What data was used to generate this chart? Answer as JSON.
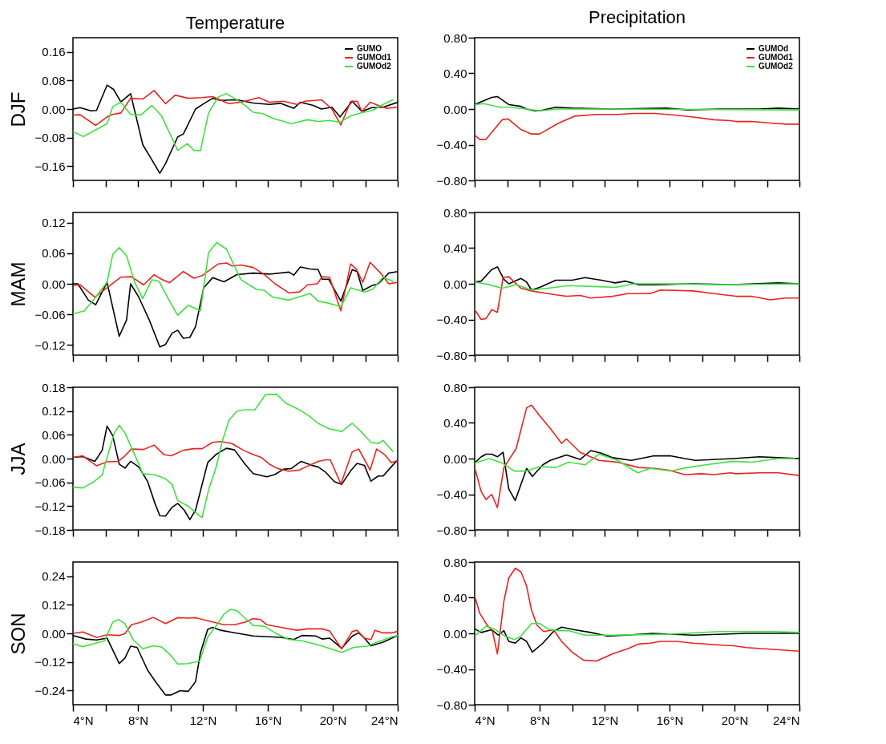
{
  "chart_data": [
    {
      "type": "line",
      "title": "Temperature",
      "ylabel": "DJF",
      "xlim": [
        4,
        24
      ],
      "xticks": [
        {
          "value": 4,
          "label": null
        },
        {
          "value": 6,
          "label": null
        },
        {
          "value": 8,
          "label": null
        },
        {
          "value": 10,
          "label": null
        },
        {
          "value": 12,
          "label": null
        },
        {
          "value": 14,
          "label": null
        },
        {
          "value": 16,
          "label": null
        },
        {
          "value": 18,
          "label": null
        },
        {
          "value": 20,
          "label": null
        },
        {
          "value": 22,
          "label": null
        },
        {
          "value": 24,
          "label": null
        }
      ],
      "ylim": [
        -0.2,
        0.2
      ],
      "yticks": [
        {
          "value": 0.16,
          "label": "0.16"
        },
        {
          "value": 0.08,
          "label": "0.08"
        },
        {
          "value": 0,
          "label": "0.00"
        },
        {
          "value": -0.08,
          "label": "−0.08"
        },
        {
          "value": -0.16,
          "label": "−0.16"
        }
      ],
      "tick_labels": "y",
      "legend": "top right",
      "series": [
        {
          "name": "GUMO",
          "color": "#000000",
          "x": [
            4,
            4.45,
            5.1,
            5.45,
            6.1,
            6.5,
            6.95,
            7.55,
            8.3,
            8.8,
            9.35,
            9.7,
            10.45,
            10.8,
            11.55,
            12.05,
            12.6,
            13.1,
            14.1,
            15.1,
            16.1,
            16.8,
            17.6,
            18,
            18.8,
            19.3,
            19.95,
            20.45,
            21.2,
            21.8,
            22.4,
            23.1,
            24
          ],
          "values": [
            0,
            0.004,
            -0.005,
            -0.004,
            0.067,
            0.055,
            0.02,
            0.043,
            -0.1,
            -0.138,
            -0.18,
            -0.153,
            -0.078,
            -0.07,
            0,
            0.015,
            0.03,
            0.024,
            0.026,
            0.017,
            0.013,
            0.016,
            0.002,
            0.019,
            0.01,
            0,
            0.005,
            -0.022,
            0.022,
            -0.007,
            0.004,
            0.005,
            0.019
          ]
        },
        {
          "name": "GUMOd1",
          "color": "#e8231f",
          "x": [
            4,
            4.45,
            5.4,
            6.1,
            6.45,
            6.95,
            7.55,
            8.3,
            9,
            9.7,
            10.3,
            11.1,
            11.95,
            12.6,
            13.6,
            14.45,
            15.45,
            16.1,
            16.95,
            17.8,
            18.3,
            19.3,
            19.95,
            20.5,
            21.1,
            21.5,
            21.8,
            22.3,
            22.8,
            23.3,
            24
          ],
          "values": [
            -0.017,
            -0.016,
            -0.046,
            -0.022,
            -0.015,
            -0.011,
            0.03,
            0.028,
            0.052,
            0.015,
            0.039,
            0.03,
            0.032,
            0.035,
            0.015,
            0.02,
            0.032,
            0.019,
            0.022,
            0.013,
            0.022,
            0.026,
            0,
            -0.045,
            0.021,
            0.022,
            -0.007,
            0.019,
            0.01,
            0.002,
            0.005
          ]
        },
        {
          "name": "GUMOd2",
          "color": "#40e040",
          "x": [
            4,
            4.65,
            6.1,
            6.45,
            6.95,
            7.55,
            8.2,
            8.85,
            9.45,
            10.45,
            11.05,
            11.45,
            11.85,
            12.35,
            12.95,
            13.45,
            13.95,
            14.6,
            15.1,
            15.7,
            16.3,
            17.45,
            18.45,
            19.1,
            19.8,
            20.45,
            21.1,
            21.8,
            22.45,
            23.1,
            23.7
          ],
          "values": [
            -0.064,
            -0.077,
            -0.041,
            0.007,
            0.019,
            -0.015,
            -0.016,
            0.01,
            -0.019,
            -0.116,
            -0.097,
            -0.116,
            -0.117,
            -0.011,
            0.034,
            0.043,
            0.03,
            0.01,
            -0.009,
            -0.013,
            -0.026,
            -0.041,
            -0.03,
            -0.035,
            -0.032,
            -0.037,
            -0.019,
            -0.01,
            -0.004,
            0.013,
            0.026
          ]
        }
      ]
    },
    {
      "type": "line",
      "title": "Precipitation",
      "xlim": [
        4,
        24
      ],
      "xticks": [
        {
          "value": 4,
          "label": null
        },
        {
          "value": 6,
          "label": null
        },
        {
          "value": 8,
          "label": null
        },
        {
          "value": 10,
          "label": null
        },
        {
          "value": 12,
          "label": null
        },
        {
          "value": 14,
          "label": null
        },
        {
          "value": 16,
          "label": null
        },
        {
          "value": 18,
          "label": null
        },
        {
          "value": 20,
          "label": null
        },
        {
          "value": 22,
          "label": null
        },
        {
          "value": 24,
          "label": null
        }
      ],
      "ylim": [
        -0.8,
        0.8
      ],
      "yticks": [
        {
          "value": 0.8,
          "label": "0.80"
        },
        {
          "value": 0.4,
          "label": "0.40"
        },
        {
          "value": 0,
          "label": "0.00"
        },
        {
          "value": -0.4,
          "label": "−0.40"
        },
        {
          "value": -0.8,
          "label": "−0.80"
        }
      ],
      "tick_labels": "y",
      "legend": "top right",
      "series": [
        {
          "name": "GUMOd",
          "color": "#000000",
          "x": [
            4,
            5.05,
            5.4,
            6.1,
            6.85,
            7.2,
            7.7,
            8,
            9,
            10,
            12.5,
            15.8,
            17.15,
            19.1,
            21.55,
            22.7,
            24
          ],
          "values": [
            0.05,
            0.13,
            0.14,
            0.05,
            0.03,
            0,
            -0.02,
            -0.02,
            0.02,
            0.01,
            0,
            0.01,
            -0.01,
            0,
            0,
            0.01,
            0
          ]
        },
        {
          "name": "GUMOd1",
          "color": "#e8231f",
          "x": [
            4,
            4.3,
            4.7,
            5.7,
            6.05,
            6.85,
            7.5,
            8,
            9.15,
            10.15,
            11.5,
            12.8,
            13.8,
            15.1,
            16.45,
            17.45,
            18.75,
            19.75,
            20.1,
            21.05,
            22.4,
            23.2,
            24
          ],
          "values": [
            -0.29,
            -0.34,
            -0.34,
            -0.12,
            -0.11,
            -0.23,
            -0.28,
            -0.28,
            -0.16,
            -0.08,
            -0.06,
            -0.06,
            -0.05,
            -0.05,
            -0.07,
            -0.09,
            -0.12,
            -0.13,
            -0.14,
            -0.14,
            -0.16,
            -0.17,
            -0.17
          ]
        },
        {
          "name": "GUMOd2",
          "color": "#40e040",
          "x": [
            4,
            4.55,
            5.55,
            6.2,
            7.2,
            8,
            9.15,
            12.5,
            24
          ],
          "values": [
            0.05,
            0.06,
            0.02,
            0.02,
            0,
            -0.02,
            0,
            0,
            -0.01
          ]
        }
      ]
    },
    {
      "type": "line",
      "ylabel": "MAM",
      "xlim": [
        4,
        24
      ],
      "xticks": [
        {
          "value": 4,
          "label": null
        },
        {
          "value": 6,
          "label": null
        },
        {
          "value": 8,
          "label": null
        },
        {
          "value": 10,
          "label": null
        },
        {
          "value": 12,
          "label": null
        },
        {
          "value": 14,
          "label": null
        },
        {
          "value": 16,
          "label": null
        },
        {
          "value": 18,
          "label": null
        },
        {
          "value": 20,
          "label": null
        },
        {
          "value": 22,
          "label": null
        },
        {
          "value": 24,
          "label": null
        }
      ],
      "ylim": [
        -0.14,
        0.14
      ],
      "yticks": [
        {
          "value": 0.12,
          "label": "0.12"
        },
        {
          "value": 0.06,
          "label": "0.06"
        },
        {
          "value": 0,
          "label": "0.00"
        },
        {
          "value": -0.06,
          "label": "−0.06"
        },
        {
          "value": -0.12,
          "label": "−0.12"
        }
      ],
      "tick_labels": "y",
      "series": [
        {
          "color": "#000000",
          "x": [
            4,
            4.3,
            4.95,
            5.4,
            6.1,
            6.85,
            7.3,
            7.55,
            8.05,
            8.7,
            9.35,
            9.7,
            10.1,
            10.45,
            10.8,
            11.2,
            11.55,
            12.05,
            12.6,
            13.3,
            14.1,
            15.1,
            16.1,
            17.3,
            17.6,
            18,
            18.6,
            19.1,
            19.35,
            19.75,
            20.5,
            21.2,
            21.5,
            21.85,
            22.45,
            22.8,
            23.45,
            24
          ],
          "values": [
            0,
            0,
            -0.032,
            -0.041,
            0.003,
            -0.103,
            -0.071,
            0,
            -0.026,
            -0.071,
            -0.124,
            -0.119,
            -0.097,
            -0.091,
            -0.107,
            -0.105,
            -0.084,
            -0.008,
            0.012,
            0.004,
            0.018,
            0.021,
            0.019,
            0.023,
            0.017,
            0.033,
            0.029,
            0.028,
            0.009,
            0.009,
            -0.034,
            0.028,
            0.024,
            -0.013,
            -0.003,
            0,
            0.021,
            0.024
          ]
        },
        {
          "color": "#e8231f",
          "x": [
            4,
            4.45,
            5.35,
            6.95,
            7.6,
            8.35,
            9,
            9.45,
            9.95,
            10.8,
            11.45,
            11.95,
            12.95,
            13.45,
            13.8,
            14.35,
            15.1,
            15.8,
            16.45,
            17.3,
            17.95,
            18.45,
            19.05,
            19.35,
            19.8,
            20.5,
            21.1,
            21.45,
            21.85,
            22.3,
            22.95,
            23.45,
            24
          ],
          "values": [
            -0.003,
            -0.002,
            -0.026,
            0.013,
            0.014,
            -0.002,
            0.018,
            0.009,
            0.002,
            0.024,
            0.011,
            0.016,
            0.039,
            0.041,
            0.035,
            0.037,
            0.032,
            0.018,
            0,
            -0.018,
            -0.016,
            -0.002,
            0,
            0.014,
            0.013,
            -0.053,
            0.039,
            0.029,
            0.003,
            0.042,
            0.021,
            0,
            0.003
          ]
        },
        {
          "color": "#40e040",
          "x": [
            4,
            4.7,
            5.45,
            6.1,
            6.45,
            6.85,
            7.3,
            7.8,
            8.3,
            8.85,
            9.3,
            9.95,
            10.45,
            11.1,
            11.85,
            12.35,
            12.85,
            13.45,
            14.35,
            15.3,
            15.8,
            16.3,
            17.3,
            18.6,
            19.1,
            19.75,
            20.5,
            21.1,
            21.95,
            22.45,
            23.1,
            23.7
          ],
          "values": [
            -0.059,
            -0.053,
            -0.024,
            0.003,
            0.058,
            0.071,
            0.055,
            0.003,
            -0.029,
            0.008,
            0.005,
            -0.034,
            -0.062,
            -0.042,
            -0.053,
            0.061,
            0.081,
            0.068,
            0.008,
            -0.011,
            -0.013,
            -0.026,
            -0.032,
            -0.019,
            -0.034,
            -0.038,
            -0.045,
            -0.008,
            -0.016,
            -0.011,
            0.013,
            0.005
          ]
        }
      ]
    },
    {
      "type": "line",
      "xlim": [
        4,
        24
      ],
      "xticks": [
        {
          "value": 4,
          "label": null
        },
        {
          "value": 6,
          "label": null
        },
        {
          "value": 8,
          "label": null
        },
        {
          "value": 10,
          "label": null
        },
        {
          "value": 12,
          "label": null
        },
        {
          "value": 14,
          "label": null
        },
        {
          "value": 16,
          "label": null
        },
        {
          "value": 18,
          "label": null
        },
        {
          "value": 20,
          "label": null
        },
        {
          "value": 22,
          "label": null
        },
        {
          "value": 24,
          "label": null
        }
      ],
      "ylim": [
        -0.8,
        0.8
      ],
      "yticks": [
        {
          "value": 0.8,
          "label": "0.80"
        },
        {
          "value": 0.4,
          "label": "0.40"
        },
        {
          "value": 0,
          "label": "0.00"
        },
        {
          "value": -0.4,
          "label": "−0.40"
        },
        {
          "value": -0.8,
          "label": "−0.80"
        }
      ],
      "tick_labels": "y",
      "series": [
        {
          "color": "#000000",
          "x": [
            4,
            4.4,
            5.05,
            5.4,
            5.8,
            6.1,
            6.85,
            7.2,
            7.5,
            8,
            9,
            10,
            10.8,
            11.8,
            12.65,
            13.3,
            14.1,
            15.1,
            17.45,
            19.9,
            22.7,
            24
          ],
          "values": [
            0.02,
            0.03,
            0.16,
            0.19,
            0.05,
            0,
            0.06,
            0.02,
            -0.07,
            -0.04,
            0.04,
            0.04,
            0.07,
            0.04,
            0.01,
            0.03,
            -0.01,
            -0.01,
            0,
            -0.01,
            0.01,
            0
          ]
        },
        {
          "color": "#e8231f",
          "x": [
            4,
            4.4,
            4.7,
            5.05,
            5.4,
            5.75,
            6.1,
            6.85,
            7.5,
            8.5,
            9.65,
            10.5,
            11.15,
            12.5,
            13.45,
            14.8,
            15.45,
            17.45,
            18.75,
            20.1,
            21.05,
            22.2,
            23.1,
            24
          ],
          "values": [
            -0.29,
            -0.4,
            -0.39,
            -0.29,
            -0.32,
            0.07,
            0.08,
            -0.05,
            -0.08,
            -0.11,
            -0.14,
            -0.13,
            -0.16,
            -0.14,
            -0.11,
            -0.11,
            -0.07,
            -0.08,
            -0.11,
            -0.14,
            -0.14,
            -0.18,
            -0.16,
            -0.16
          ]
        },
        {
          "color": "#40e040",
          "x": [
            4,
            4.9,
            5.7,
            6.55,
            7.5,
            8.5,
            9.8,
            11.3,
            12.65,
            13.8,
            15.8,
            19.1,
            24
          ],
          "values": [
            0.02,
            -0.01,
            -0.05,
            -0.01,
            -0.07,
            -0.05,
            -0.02,
            -0.03,
            -0.04,
            0,
            0,
            -0.01,
            0
          ]
        }
      ]
    },
    {
      "type": "line",
      "ylabel": "JJA",
      "xlim": [
        4,
        24
      ],
      "xticks": [
        {
          "value": 4,
          "label": null
        },
        {
          "value": 6,
          "label": null
        },
        {
          "value": 8,
          "label": null
        },
        {
          "value": 10,
          "label": null
        },
        {
          "value": 12,
          "label": null
        },
        {
          "value": 14,
          "label": null
        },
        {
          "value": 16,
          "label": null
        },
        {
          "value": 18,
          "label": null
        },
        {
          "value": 20,
          "label": null
        },
        {
          "value": 22,
          "label": null
        },
        {
          "value": 24,
          "label": null
        }
      ],
      "ylim": [
        -0.18,
        0.18
      ],
      "yticks": [
        {
          "value": 0.18,
          "label": "0.18"
        },
        {
          "value": 0.12,
          "label": "0.12"
        },
        {
          "value": 0.06,
          "label": "0.06"
        },
        {
          "value": 0,
          "label": "0.00"
        },
        {
          "value": -0.06,
          "label": "−0.06"
        },
        {
          "value": -0.12,
          "label": "−0.12"
        },
        {
          "value": -0.18,
          "label": "−0.18"
        }
      ],
      "tick_labels": "y",
      "series": [
        {
          "color": "#000000",
          "x": [
            4,
            4.6,
            5.35,
            5.8,
            6.1,
            6.45,
            6.85,
            7.2,
            7.55,
            8.05,
            8.6,
            9.05,
            9.35,
            9.7,
            10.1,
            10.45,
            10.85,
            11.2,
            11.55,
            12.3,
            12.8,
            13.45,
            13.95,
            14.6,
            15.1,
            15.95,
            16.45,
            16.95,
            17.45,
            18.05,
            18.8,
            19.1,
            19.55,
            20.1,
            20.55,
            21.1,
            21.5,
            21.95,
            22.35,
            22.8,
            23.1,
            23.6,
            24
          ],
          "values": [
            0.003,
            0.005,
            -0.007,
            0.021,
            0.082,
            0.058,
            -0.014,
            -0.024,
            -0.007,
            -0.021,
            -0.058,
            -0.113,
            -0.144,
            -0.145,
            -0.123,
            -0.113,
            -0.13,
            -0.154,
            -0.13,
            -0.01,
            0.01,
            0.026,
            0.022,
            -0.014,
            -0.038,
            -0.046,
            -0.04,
            -0.027,
            -0.025,
            -0.007,
            -0.018,
            -0.021,
            -0.034,
            -0.058,
            -0.065,
            -0.031,
            -0.012,
            -0.017,
            -0.057,
            -0.044,
            -0.044,
            -0.021,
            -0.003
          ]
        },
        {
          "color": "#e8231f",
          "x": [
            4,
            4.6,
            5.45,
            6.1,
            6.8,
            7.2,
            7.6,
            8.35,
            9,
            9.6,
            10.05,
            10.8,
            11.45,
            11.95,
            12.6,
            13.1,
            13.8,
            14.45,
            15.1,
            15.6,
            16.1,
            16.6,
            17.3,
            17.95,
            18.55,
            19.1,
            19.6,
            19.85,
            20.5,
            21.2,
            21.6,
            22.3,
            22.7,
            23.2,
            23.6,
            24
          ],
          "values": [
            0.003,
            0.007,
            -0.018,
            -0.008,
            -0.007,
            0.007,
            0.024,
            0.023,
            0.034,
            0.01,
            0.007,
            0.021,
            0.025,
            0.025,
            0.041,
            0.043,
            0.038,
            0.022,
            0.01,
            0.003,
            -0.014,
            -0.025,
            -0.032,
            -0.029,
            -0.017,
            -0.007,
            -0.003,
            -0.003,
            -0.064,
            0.017,
            0.024,
            -0.029,
            0.024,
            0.01,
            -0.01,
            -0.005
          ]
        },
        {
          "color": "#40e040",
          "x": [
            4,
            4.6,
            5.3,
            5.8,
            6.1,
            6.55,
            6.85,
            7.2,
            7.8,
            8.3,
            9.05,
            9.7,
            10.1,
            10.45,
            11.1,
            11.55,
            11.95,
            12.35,
            12.8,
            13.2,
            13.6,
            14.1,
            14.55,
            15.2,
            15.85,
            16.55,
            17.1,
            17.95,
            18.6,
            19.1,
            19.8,
            20.1,
            20.55,
            21.2,
            21.7,
            22.35,
            22.8,
            23.1,
            23.7
          ],
          "values": [
            -0.072,
            -0.074,
            -0.058,
            -0.041,
            0.003,
            0.065,
            0.084,
            0.065,
            0.01,
            -0.038,
            -0.041,
            -0.051,
            -0.065,
            -0.106,
            -0.12,
            -0.136,
            -0.149,
            -0.079,
            -0.024,
            0.044,
            0.096,
            0.12,
            0.123,
            0.123,
            0.161,
            0.162,
            0.14,
            0.123,
            0.106,
            0.089,
            0.075,
            0.073,
            0.068,
            0.089,
            0.07,
            0.041,
            0.038,
            0.046,
            0.018
          ]
        }
      ]
    },
    {
      "type": "line",
      "xlim": [
        4,
        24
      ],
      "xticks": [
        {
          "value": 4,
          "label": null
        },
        {
          "value": 6,
          "label": null
        },
        {
          "value": 8,
          "label": null
        },
        {
          "value": 10,
          "label": null
        },
        {
          "value": 12,
          "label": null
        },
        {
          "value": 14,
          "label": null
        },
        {
          "value": 16,
          "label": null
        },
        {
          "value": 18,
          "label": null
        },
        {
          "value": 20,
          "label": null
        },
        {
          "value": 22,
          "label": null
        },
        {
          "value": 24,
          "label": null
        }
      ],
      "ylim": [
        -0.8,
        0.8
      ],
      "yticks": [
        {
          "value": 0.8,
          "label": "0.80"
        },
        {
          "value": 0.4,
          "label": "0.40"
        },
        {
          "value": 0,
          "label": "0.00"
        },
        {
          "value": -0.4,
          "label": "−0.40"
        },
        {
          "value": -0.8,
          "label": "−0.80"
        }
      ],
      "tick_labels": "y",
      "series": [
        {
          "color": "#000000",
          "x": [
            4,
            4.4,
            4.7,
            5.05,
            5.4,
            5.75,
            6.1,
            6.5,
            7.2,
            7.55,
            8.2,
            8.65,
            9.65,
            10.5,
            11.15,
            11.8,
            12.5,
            13.65,
            15,
            16.1,
            16.95,
            17.6,
            19.9,
            21.55,
            22.7,
            24
          ],
          "values": [
            -0.05,
            0.02,
            0.05,
            0.05,
            0.02,
            0.07,
            -0.34,
            -0.47,
            -0.11,
            -0.2,
            -0.07,
            -0.02,
            0.04,
            -0.01,
            0.09,
            0.06,
            0.01,
            -0.02,
            0.03,
            0.03,
            0,
            -0.02,
            0,
            0.02,
            0.01,
            0
          ]
        },
        {
          "color": "#e8231f",
          "x": [
            4,
            4.4,
            4.7,
            5.05,
            5.4,
            5.8,
            6.55,
            7.2,
            7.5,
            8,
            8.65,
            9.15,
            9.35,
            9.65,
            10.5,
            11.65,
            12.8,
            14.1,
            15.1,
            15.95,
            16.95,
            17.95,
            18.75,
            19.75,
            20.1,
            21.55,
            22.7,
            24
          ],
          "values": [
            -0.1,
            -0.37,
            -0.46,
            -0.4,
            -0.55,
            -0.1,
            0.11,
            0.57,
            0.6,
            0.48,
            0.34,
            0.22,
            0.17,
            0.22,
            0.07,
            -0.02,
            -0.04,
            -0.1,
            -0.11,
            -0.13,
            -0.18,
            -0.17,
            -0.18,
            -0.16,
            -0.17,
            -0.16,
            -0.16,
            -0.19
          ]
        },
        {
          "color": "#40e040",
          "x": [
            4,
            4.9,
            5.7,
            6.45,
            7.2,
            8,
            9,
            9.8,
            10.8,
            11.65,
            12.8,
            14.05,
            14.8,
            16.1,
            17.1,
            18.25,
            19.9,
            21.05,
            22.7,
            23.7
          ],
          "values": [
            -0.05,
            0,
            -0.05,
            -0.14,
            -0.14,
            -0.09,
            -0.1,
            -0.04,
            -0.07,
            0.05,
            -0.02,
            -0.16,
            -0.11,
            -0.14,
            -0.1,
            -0.07,
            -0.03,
            -0.04,
            0,
            0
          ]
        }
      ]
    },
    {
      "type": "line",
      "ylabel": "SON",
      "xlim": [
        4,
        24
      ],
      "xticks": [
        {
          "value": 4,
          "label": "4°N"
        },
        {
          "value": 6,
          "label": null
        },
        {
          "value": 8,
          "label": "8°N"
        },
        {
          "value": 10,
          "label": null
        },
        {
          "value": 12,
          "label": "12°N"
        },
        {
          "value": 14,
          "label": null
        },
        {
          "value": 16,
          "label": "16°N"
        },
        {
          "value": 18,
          "label": null
        },
        {
          "value": 20,
          "label": "20°N"
        },
        {
          "value": 22,
          "label": null
        },
        {
          "value": 24,
          "label": "24°N"
        }
      ],
      "ylim": [
        -0.3,
        0.3
      ],
      "yticks": [
        {
          "value": 0.24,
          "label": "0.24"
        },
        {
          "value": 0.12,
          "label": "0.12"
        },
        {
          "value": 0,
          "label": "0.00"
        },
        {
          "value": -0.12,
          "label": "−0.12"
        },
        {
          "value": -0.24,
          "label": "−0.24"
        }
      ],
      "series": [
        {
          "color": "#000000",
          "x": [
            4,
            4.8,
            5.45,
            6.1,
            6.85,
            7.2,
            7.55,
            7.95,
            8.6,
            9.1,
            9.7,
            10.05,
            10.6,
            11.1,
            11.55,
            11.85,
            12.3,
            12.6,
            13.1,
            13.8,
            15.1,
            16.8,
            17.6,
            18.1,
            18.95,
            19.35,
            19.8,
            20.55,
            21.2,
            21.6,
            21.95,
            22.35,
            23.1,
            24
          ],
          "values": [
            -0.009,
            -0.024,
            -0.028,
            -0.02,
            -0.127,
            -0.104,
            -0.054,
            -0.059,
            -0.155,
            -0.205,
            -0.259,
            -0.259,
            -0.241,
            -0.244,
            -0.203,
            -0.082,
            0.017,
            0.025,
            0.013,
            0.004,
            -0.011,
            -0.017,
            -0.026,
            -0.009,
            -0.011,
            -0.024,
            -0.02,
            -0.063,
            -0.012,
            0.002,
            -0.02,
            -0.052,
            -0.037,
            -0.009
          ]
        },
        {
          "color": "#e8231f",
          "x": [
            4,
            4.6,
            5.45,
            6.1,
            6.85,
            7.2,
            7.6,
            8.2,
            8.95,
            9.7,
            10.45,
            11.1,
            11.55,
            12.3,
            13.3,
            13.95,
            14.6,
            15.1,
            15.55,
            15.95,
            16.8,
            17.8,
            18.45,
            19.35,
            19.8,
            20.55,
            21.2,
            21.5,
            21.95,
            22.35,
            22.6,
            23.1,
            23.6,
            24
          ],
          "values": [
            0,
            0.006,
            -0.017,
            -0.006,
            -0.009,
            -0.001,
            0.036,
            0.047,
            0.067,
            0.041,
            0.066,
            0.064,
            0.066,
            0.053,
            0.036,
            0.036,
            0.047,
            0.062,
            0.058,
            0.036,
            0.025,
            0.013,
            0.019,
            0.019,
            0.01,
            -0.065,
            0.008,
            0.013,
            -0.02,
            -0.026,
            0.013,
            0.002,
            0.002,
            0.008
          ]
        },
        {
          "color": "#40e040",
          "x": [
            4,
            4.6,
            5.95,
            6.45,
            6.8,
            7.2,
            7.7,
            8.3,
            8.95,
            9.45,
            9.95,
            10.45,
            11.1,
            11.8,
            12.3,
            12.8,
            13.3,
            13.7,
            14.1,
            14.6,
            15.1,
            15.8,
            16.45,
            17.3,
            18.1,
            19.1,
            19.8,
            20.55,
            21.3,
            22.1,
            22.8,
            23.6,
            24
          ],
          "values": [
            -0.043,
            -0.056,
            -0.031,
            0.047,
            0.058,
            0.041,
            -0.026,
            -0.065,
            -0.052,
            -0.057,
            -0.087,
            -0.129,
            -0.127,
            -0.116,
            -0.015,
            0.03,
            0.081,
            0.101,
            0.095,
            0.064,
            0.033,
            0.03,
            0.002,
            -0.026,
            -0.031,
            -0.048,
            -0.063,
            -0.08,
            -0.059,
            -0.054,
            -0.035,
            -0.015,
            -0.009
          ]
        }
      ]
    },
    {
      "type": "line",
      "xlim": [
        4,
        24
      ],
      "xticks": [
        {
          "value": 4,
          "label": "4°N"
        },
        {
          "value": 6,
          "label": null
        },
        {
          "value": 8,
          "label": "8°N"
        },
        {
          "value": 10,
          "label": null
        },
        {
          "value": 12,
          "label": "12°N"
        },
        {
          "value": 14,
          "label": null
        },
        {
          "value": 16,
          "label": "16°N"
        },
        {
          "value": 18,
          "label": null
        },
        {
          "value": 20,
          "label": "20°N"
        },
        {
          "value": 22,
          "label": null
        },
        {
          "value": 24,
          "label": "24°N"
        }
      ],
      "ylim": [
        -0.8,
        0.8
      ],
      "yticks": [
        {
          "value": 0.8,
          "label": "0.80"
        },
        {
          "value": 0.4,
          "label": "0.40"
        },
        {
          "value": 0,
          "label": "0.00"
        },
        {
          "value": -0.4,
          "label": "−0.40"
        },
        {
          "value": -0.8,
          "label": "−0.80"
        }
      ],
      "series": [
        {
          "color": "#000000",
          "x": [
            4,
            4.4,
            5.05,
            5.45,
            5.8,
            6.1,
            6.5,
            6.85,
            7.2,
            7.55,
            8.2,
            8.85,
            9.35,
            10.15,
            11.15,
            12.15,
            13.3,
            14.95,
            17.45,
            20.75,
            24
          ],
          "values": [
            0.05,
            0.01,
            0.04,
            -0.02,
            0.03,
            -0.09,
            -0.11,
            -0.05,
            -0.09,
            -0.21,
            -0.11,
            0.02,
            0.07,
            0.04,
            0.01,
            -0.03,
            -0.02,
            0,
            -0.02,
            0,
            0
          ]
        },
        {
          "color": "#e8231f",
          "x": [
            4,
            4.3,
            4.7,
            5.1,
            5.4,
            5.8,
            6.1,
            6.5,
            6.85,
            7.2,
            7.5,
            7.85,
            8.25,
            8.85,
            9.35,
            10,
            10.7,
            11.5,
            12.5,
            13.45,
            14.1,
            14.8,
            15.45,
            16.45,
            17.45,
            19.1,
            19.95,
            20.75,
            22.4,
            24
          ],
          "values": [
            0.42,
            0.23,
            0.11,
            0.02,
            -0.23,
            0.36,
            0.62,
            0.73,
            0.69,
            0.53,
            0.26,
            0.09,
            0.02,
            0.04,
            -0.09,
            -0.21,
            -0.3,
            -0.31,
            -0.23,
            -0.17,
            -0.12,
            -0.11,
            -0.09,
            -0.09,
            -0.11,
            -0.13,
            -0.14,
            -0.16,
            -0.18,
            -0.2
          ]
        },
        {
          "color": "#40e040",
          "x": [
            4,
            4.7,
            5.2,
            5.85,
            6.45,
            6.85,
            7.5,
            8,
            8.5,
            9.15,
            9.8,
            10.8,
            12.5,
            15.8,
            19.1,
            20.75,
            22.4,
            24
          ],
          "values": [
            -0.03,
            0.08,
            0.05,
            -0.03,
            -0.07,
            -0.03,
            0.11,
            0.11,
            0.05,
            0.03,
            0.03,
            -0.02,
            -0.02,
            -0.01,
            0.02,
            0.02,
            0.02,
            0.01
          ]
        }
      ]
    }
  ]
}
